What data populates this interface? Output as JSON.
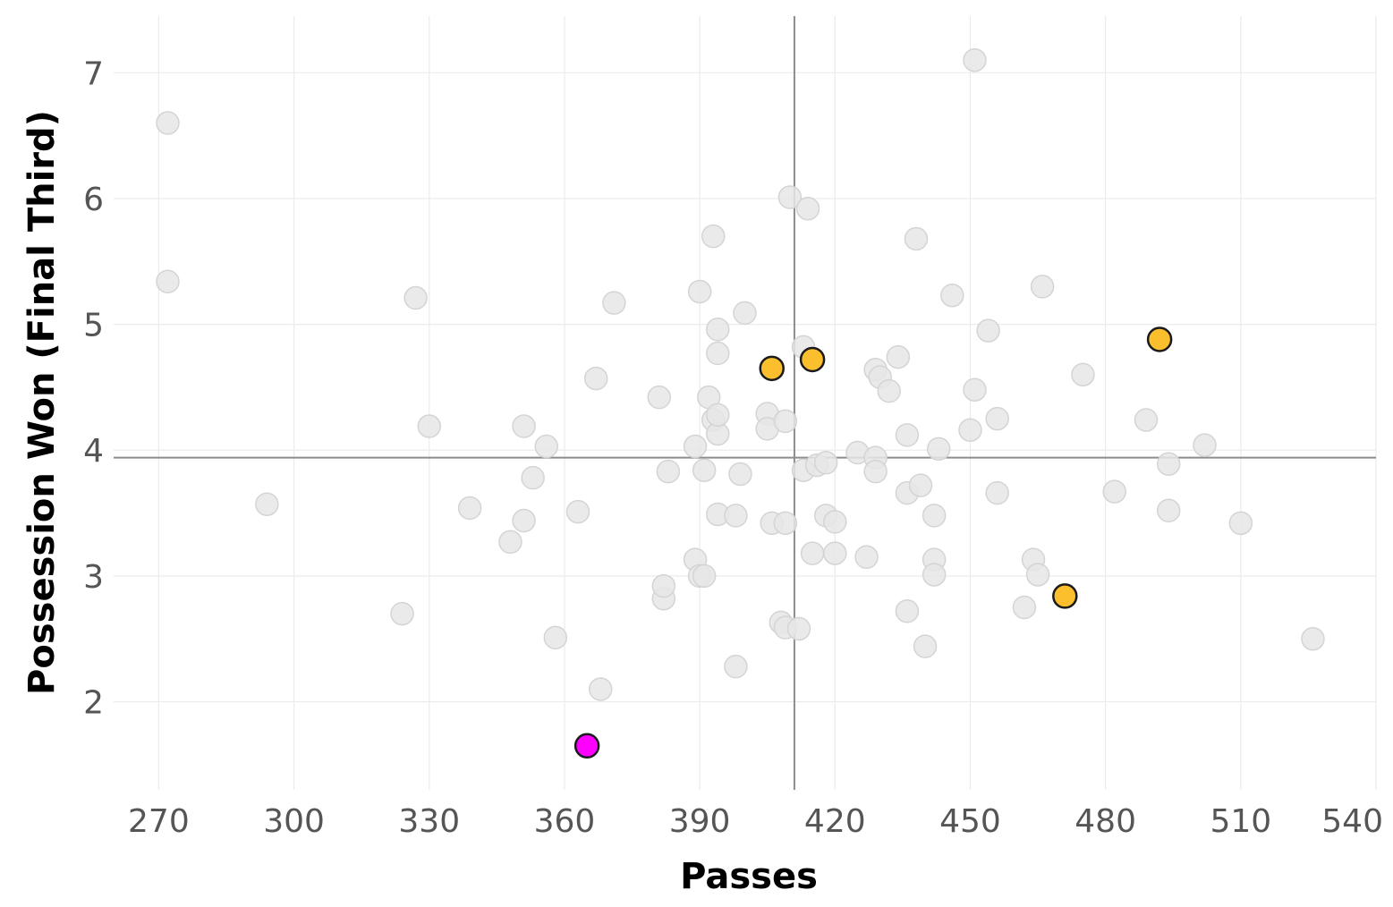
{
  "chart_data": {
    "type": "scatter",
    "xlabel": "Passes",
    "ylabel": "Possession Won (Final Third)",
    "xlim": [
      260,
      540
    ],
    "ylim": [
      1.3,
      7.45
    ],
    "x_ticks": [
      270,
      300,
      330,
      360,
      390,
      420,
      450,
      480,
      510,
      540
    ],
    "y_ticks": [
      2,
      3,
      4,
      5,
      6,
      7
    ],
    "grid": true,
    "reference_lines": {
      "x": 411,
      "y": 3.94
    },
    "colors": {
      "background_points": "#e6e6e6",
      "background_stroke": "#d4d4d4",
      "highlight": "#fbbf2d",
      "focus": "#ff00ff",
      "marker_stroke": "#1a1a1a",
      "reference_line": "#8c8c8c"
    },
    "background_points": [
      [
        272,
        6.6
      ],
      [
        272,
        5.34
      ],
      [
        294,
        3.57
      ],
      [
        327,
        5.21
      ],
      [
        330,
        4.19
      ],
      [
        324,
        2.7
      ],
      [
        339,
        3.54
      ],
      [
        348,
        3.27
      ],
      [
        351,
        3.44
      ],
      [
        351,
        4.19
      ],
      [
        353,
        3.78
      ],
      [
        356,
        4.03
      ],
      [
        358,
        2.51
      ],
      [
        363,
        3.51
      ],
      [
        367,
        4.57
      ],
      [
        368,
        2.1
      ],
      [
        371,
        5.17
      ],
      [
        381,
        4.42
      ],
      [
        382,
        2.82
      ],
      [
        382,
        2.92
      ],
      [
        383,
        3.83
      ],
      [
        389,
        4.03
      ],
      [
        389,
        3.13
      ],
      [
        390,
        5.26
      ],
      [
        390,
        3.0
      ],
      [
        391,
        3.0
      ],
      [
        391,
        3.84
      ],
      [
        392,
        4.42
      ],
      [
        393,
        5.7
      ],
      [
        393,
        4.24
      ],
      [
        394,
        4.96
      ],
      [
        394,
        4.77
      ],
      [
        394,
        4.13
      ],
      [
        394,
        4.28
      ],
      [
        394,
        3.49
      ],
      [
        398,
        3.48
      ],
      [
        398,
        2.28
      ],
      [
        399,
        3.81
      ],
      [
        400,
        5.09
      ],
      [
        405,
        4.29
      ],
      [
        405,
        4.17
      ],
      [
        406,
        3.42
      ],
      [
        408,
        2.63
      ],
      [
        409,
        4.23
      ],
      [
        409,
        3.42
      ],
      [
        409,
        2.59
      ],
      [
        410,
        6.01
      ],
      [
        412,
        2.58
      ],
      [
        413,
        4.82
      ],
      [
        413,
        3.84
      ],
      [
        414,
        5.92
      ],
      [
        415,
        3.18
      ],
      [
        416,
        3.88
      ],
      [
        418,
        3.9
      ],
      [
        418,
        3.48
      ],
      [
        420,
        3.43
      ],
      [
        420,
        3.18
      ],
      [
        425,
        3.98
      ],
      [
        427,
        3.15
      ],
      [
        429,
        4.64
      ],
      [
        429,
        3.94
      ],
      [
        429,
        3.83
      ],
      [
        430,
        4.58
      ],
      [
        432,
        4.47
      ],
      [
        434,
        4.74
      ],
      [
        436,
        4.12
      ],
      [
        436,
        3.66
      ],
      [
        436,
        2.72
      ],
      [
        438,
        5.68
      ],
      [
        439,
        3.72
      ],
      [
        440,
        2.44
      ],
      [
        442,
        3.48
      ],
      [
        442,
        3.13
      ],
      [
        442,
        3.01
      ],
      [
        443,
        4.01
      ],
      [
        446,
        5.23
      ],
      [
        450,
        4.16
      ],
      [
        451,
        4.48
      ],
      [
        451,
        7.1
      ],
      [
        454,
        4.95
      ],
      [
        456,
        4.25
      ],
      [
        456,
        3.66
      ],
      [
        462,
        2.75
      ],
      [
        464,
        3.13
      ],
      [
        465,
        3.01
      ],
      [
        466,
        5.3
      ],
      [
        475,
        4.6
      ],
      [
        482,
        3.67
      ],
      [
        489,
        4.24
      ],
      [
        494,
        3.89
      ],
      [
        494,
        3.52
      ],
      [
        502,
        4.04
      ],
      [
        510,
        3.42
      ],
      [
        526,
        2.5
      ]
    ],
    "highlight_points": [
      [
        406,
        4.65
      ],
      [
        415,
        4.72
      ],
      [
        471,
        2.84
      ],
      [
        492,
        4.88
      ]
    ],
    "focus_point": [
      365,
      1.65
    ]
  }
}
